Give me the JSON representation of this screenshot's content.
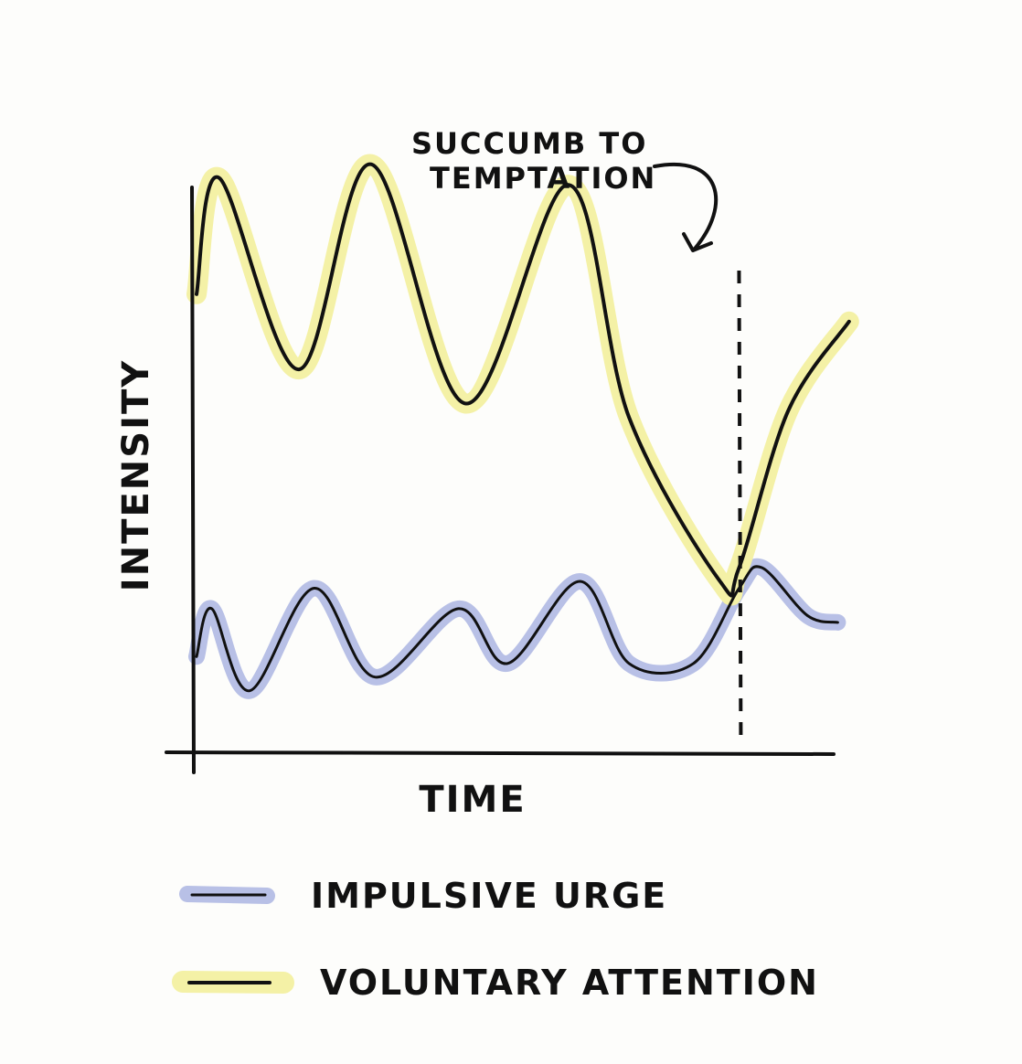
{
  "chart_data": {
    "type": "line",
    "xlabel": "TIME",
    "ylabel": "INTENSITY",
    "annotation": {
      "text_line1": "SUCCUMB TO",
      "text_line2": "TEMPTATION",
      "x": 14.3
    },
    "xlim": [
      0,
      20
    ],
    "ylim": [
      0,
      10
    ],
    "grid": false,
    "legend_position": "bottom-left",
    "series": [
      {
        "name": "IMPULSIVE URGE",
        "color": "#b8c0e6",
        "x": [
          0,
          0.4,
          1.4,
          3.1,
          4.7,
          6.9,
          8.2,
          10.1,
          11.4,
          13.1,
          14.3,
          14.9,
          16.1,
          16.9
        ],
        "y": [
          1.4,
          2.1,
          0.9,
          2.4,
          1.1,
          2.1,
          1.3,
          2.5,
          1.3,
          1.3,
          2.4,
          2.7,
          2.0,
          1.9
        ]
      },
      {
        "name": "VOLUNTARY ATTENTION",
        "color": "#f4f1a6",
        "x": [
          0,
          0.6,
          2.7,
          4.6,
          7.1,
          9.8,
          11.4,
          13.8,
          14.3,
          15.6,
          17.2
        ],
        "y": [
          6.7,
          8.4,
          5.6,
          8.6,
          5.1,
          8.3,
          4.9,
          2.5,
          2.7,
          5.0,
          6.3
        ]
      }
    ],
    "legend": [
      {
        "label": "IMPULSIVE URGE",
        "color": "#b8c0e6"
      },
      {
        "label": "VOLUNTARY ATTENTION",
        "color": "#f4f1a6"
      }
    ]
  }
}
